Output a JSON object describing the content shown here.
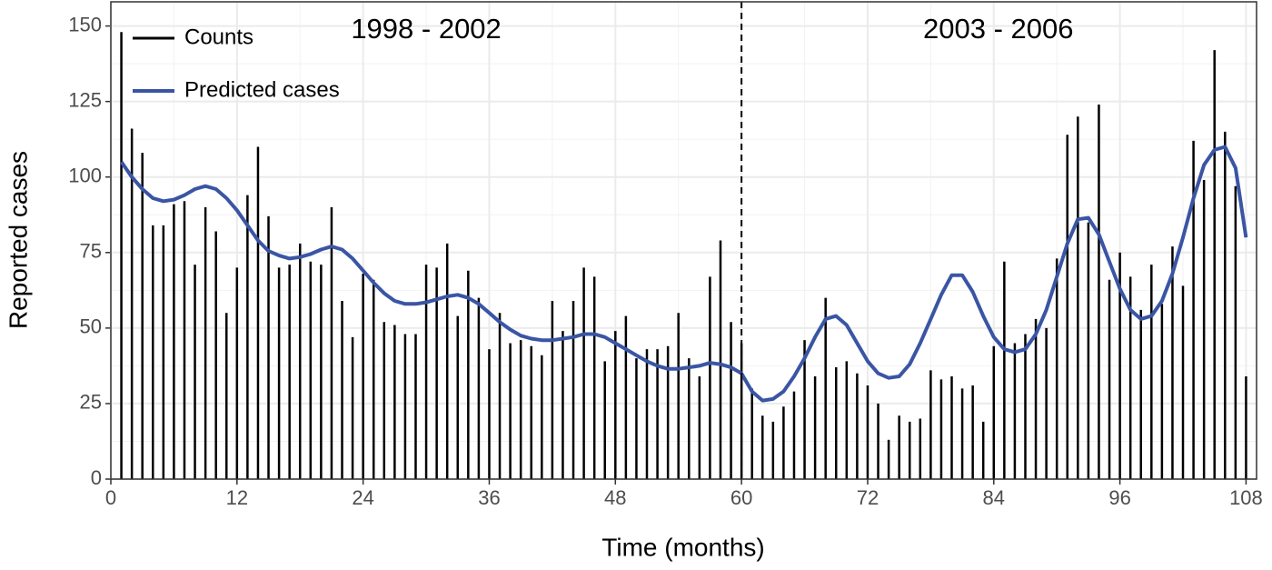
{
  "chart_data": {
    "type": "bar",
    "xlabel": "Time (months)",
    "ylabel": "Reported cases",
    "annotations": [
      "1998 - 2002",
      "2003 - 2006"
    ],
    "vline": 60,
    "x": [
      1,
      2,
      3,
      4,
      5,
      6,
      7,
      8,
      9,
      10,
      11,
      12,
      13,
      14,
      15,
      16,
      17,
      18,
      19,
      20,
      21,
      22,
      23,
      24,
      25,
      26,
      27,
      28,
      29,
      30,
      31,
      32,
      33,
      34,
      35,
      36,
      37,
      38,
      39,
      40,
      41,
      42,
      43,
      44,
      45,
      46,
      47,
      48,
      49,
      50,
      51,
      52,
      53,
      54,
      55,
      56,
      57,
      58,
      59,
      60,
      61,
      62,
      63,
      64,
      65,
      66,
      67,
      68,
      69,
      70,
      71,
      72,
      73,
      74,
      75,
      76,
      77,
      78,
      79,
      80,
      81,
      82,
      83,
      84,
      85,
      86,
      87,
      88,
      89,
      90,
      91,
      92,
      93,
      94,
      95,
      96,
      97,
      98,
      99,
      100,
      101,
      102,
      103,
      104,
      105,
      106,
      107,
      108
    ],
    "series": [
      {
        "name": "Counts",
        "type": "bar",
        "color": "#000000",
        "values": [
          148,
          116,
          108,
          84,
          84,
          91,
          92,
          71,
          90,
          82,
          55,
          70,
          94,
          110,
          87,
          70,
          71,
          78,
          72,
          71,
          90,
          59,
          47,
          68,
          66,
          52,
          51,
          48,
          48,
          71,
          70,
          78,
          54,
          69,
          60,
          43,
          55,
          45,
          46,
          44,
          41,
          59,
          49,
          59,
          70,
          67,
          39,
          49,
          54,
          40,
          43,
          43,
          44,
          55,
          40,
          34,
          67,
          79,
          52,
          45,
          30,
          21,
          19,
          24,
          29,
          46,
          34,
          60,
          37,
          39,
          35,
          31,
          25,
          13,
          21,
          19,
          20,
          36,
          33,
          34,
          30,
          31,
          19,
          44,
          72,
          45,
          48,
          53,
          50,
          73,
          114,
          120,
          85,
          124,
          66,
          75,
          67,
          56,
          71,
          58,
          77,
          64,
          112,
          99,
          142,
          115,
          97,
          34
        ]
      },
      {
        "name": "Predicted cases",
        "type": "line",
        "color": "#3a55a4",
        "values": [
          105,
          100,
          96,
          93,
          92,
          92.5,
          94,
          96,
          97,
          96,
          93,
          89,
          84,
          79,
          75.5,
          74,
          73,
          73.5,
          74.5,
          76,
          77,
          76,
          73,
          69,
          65,
          61.5,
          59,
          58,
          58,
          58.5,
          59.5,
          60.5,
          61,
          60,
          58,
          55,
          52,
          49.5,
          47.5,
          46.5,
          46,
          46,
          46.5,
          47,
          48,
          48,
          47,
          45,
          43,
          41,
          39,
          37.5,
          36.5,
          36.5,
          37,
          37.5,
          38.5,
          38,
          37,
          35,
          29,
          26,
          26.5,
          29,
          34,
          40,
          47,
          53,
          54,
          51,
          45,
          39,
          35,
          33.5,
          34,
          38,
          45,
          53,
          61,
          67.5,
          67.5,
          62,
          54,
          47,
          43,
          42,
          43,
          48,
          56,
          67,
          78,
          86,
          86.5,
          81,
          72,
          63,
          56,
          53,
          54,
          59,
          68,
          80,
          93,
          104,
          109,
          110,
          103,
          80
        ]
      }
    ],
    "xlim": [
      0,
      109
    ],
    "xticks": [
      0,
      12,
      24,
      36,
      48,
      60,
      72,
      84,
      96,
      108
    ],
    "ylim": [
      0,
      158
    ],
    "yticks": [
      0,
      25,
      50,
      75,
      100,
      125,
      150
    ],
    "grid": true,
    "legend": "top-left"
  }
}
